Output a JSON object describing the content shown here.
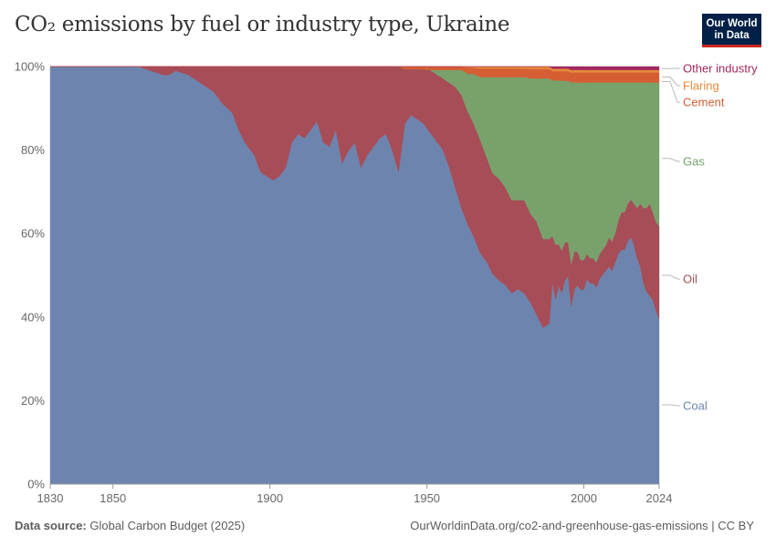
{
  "header": {
    "title": "CO₂ emissions by fuel or industry type, Ukraine",
    "logo_line1": "Our World",
    "logo_line2": "in Data"
  },
  "footer": {
    "source_label": "Data source:",
    "source_text": "Global Carbon Budget (2025)",
    "url_text": "OurWorldinData.org/co2-and-greenhouse-gas-emissions | CC BY"
  },
  "chart_data": {
    "type": "area",
    "stacked": true,
    "normalized": true,
    "xlim": [
      1830,
      2024
    ],
    "ylim": [
      0,
      100
    ],
    "x_ticks": [
      1830,
      1850,
      1900,
      1950,
      2000,
      2024
    ],
    "y_ticks": [
      "0%",
      "20%",
      "40%",
      "60%",
      "80%",
      "100%"
    ],
    "grid": true,
    "legend_placement": "right",
    "x": [
      1830,
      1850,
      1858,
      1862,
      1866,
      1868,
      1870,
      1874,
      1878,
      1882,
      1885,
      1888,
      1890,
      1892,
      1895,
      1897,
      1899,
      1901,
      1903,
      1905,
      1907,
      1909,
      1911,
      1913,
      1915,
      1917,
      1919,
      1921,
      1923,
      1925,
      1927,
      1929,
      1931,
      1933,
      1935,
      1937,
      1939,
      1941,
      1943,
      1945,
      1947,
      1949,
      1951,
      1953,
      1955,
      1957,
      1959,
      1961,
      1963,
      1965,
      1967,
      1969,
      1971,
      1973,
      1975,
      1977,
      1979,
      1981,
      1983,
      1985,
      1987,
      1989,
      1990,
      1991,
      1992,
      1993,
      1994,
      1995,
      1996,
      1997,
      1998,
      1999,
      2000,
      2001,
      2002,
      2003,
      2004,
      2005,
      2006,
      2007,
      2008,
      2009,
      2010,
      2011,
      2012,
      2013,
      2014,
      2015,
      2016,
      2017,
      2018,
      2019,
      2020,
      2021,
      2022,
      2023,
      2024
    ],
    "series": [
      {
        "name": "Coal",
        "color": "#6d84ae",
        "values": [
          100,
          100,
          100,
          99,
          98,
          98,
          99,
          98,
          96,
          94,
          91,
          88,
          84,
          81,
          78,
          74,
          73,
          72,
          73,
          75,
          81,
          83,
          82,
          84,
          86,
          81,
          80,
          84,
          76,
          79,
          81,
          75,
          78,
          80,
          82,
          83,
          79,
          74,
          86,
          88,
          87,
          86,
          84,
          82,
          80,
          76,
          71,
          66,
          62,
          59,
          55,
          53,
          50,
          48,
          47,
          45,
          46,
          45,
          43,
          40,
          37,
          38,
          48,
          44,
          47,
          45,
          48,
          49,
          42,
          46,
          47,
          46,
          46,
          49,
          48,
          48,
          47,
          49,
          50,
          51,
          52,
          51,
          53,
          55,
          56,
          56,
          58,
          59,
          57,
          54,
          52,
          48,
          46,
          45,
          44,
          41,
          39
        ]
      },
      {
        "name": "Oil",
        "color": "#a64d57",
        "values": [
          0,
          0,
          0,
          1,
          2,
          2,
          1,
          2,
          4,
          6,
          9,
          11,
          15,
          18,
          21,
          25,
          26,
          27,
          26,
          24,
          18,
          16,
          17,
          15,
          13,
          18,
          19,
          15,
          23,
          20,
          18,
          24,
          21,
          19,
          17,
          16,
          20,
          25,
          13,
          11,
          12,
          13,
          15,
          16,
          17,
          20,
          24,
          27,
          27,
          27,
          27,
          25,
          24,
          24,
          23,
          22,
          21,
          22,
          21,
          22,
          21,
          20,
          11,
          13,
          10,
          10,
          9,
          8,
          10,
          9,
          8,
          7,
          7,
          6,
          6,
          6,
          6,
          6,
          6,
          6,
          7,
          7,
          7,
          8,
          9,
          9,
          9,
          9,
          10,
          12,
          15,
          18,
          20,
          22,
          21,
          21,
          22
        ]
      },
      {
        "name": "Gas",
        "color": "#78a16c",
        "values": [
          0,
          0,
          0,
          0,
          0,
          0,
          0,
          0,
          0,
          0,
          0,
          0,
          0,
          0,
          0,
          0,
          0,
          0,
          0,
          0,
          0,
          0,
          0,
          0,
          0,
          0,
          0,
          0,
          0,
          0,
          0,
          0,
          0,
          0,
          0,
          0,
          0,
          0,
          0,
          0,
          0,
          0,
          0,
          1,
          2,
          3,
          4,
          6,
          9,
          12,
          15,
          19,
          23,
          24,
          26,
          29,
          29,
          29,
          32,
          34,
          38,
          38,
          37,
          39,
          39,
          40,
          38,
          38,
          43,
          40,
          40,
          42,
          42,
          41,
          42,
          42,
          43,
          41,
          40,
          39,
          37,
          38,
          36,
          33,
          31,
          31,
          29,
          28,
          29,
          30,
          29,
          30,
          30,
          29,
          31,
          33,
          34
        ]
      },
      {
        "name": "Cement",
        "color": "#d55e33",
        "values": [
          0,
          0,
          0,
          0,
          0,
          0,
          0,
          0,
          0,
          0,
          0,
          0,
          0,
          0,
          0,
          0,
          0,
          0,
          0,
          0,
          0,
          0,
          0,
          0,
          0,
          0,
          0,
          0,
          0,
          0,
          0,
          0,
          0,
          0,
          0,
          0,
          0,
          0,
          0.6,
          0.6,
          0.6,
          0.7,
          0.8,
          0.8,
          0.8,
          0.8,
          0.8,
          0.8,
          1.5,
          1.5,
          2,
          2,
          2,
          2,
          2,
          2,
          2,
          2,
          2.2,
          2.2,
          2.2,
          2.2,
          2.2,
          2.2,
          2.2,
          2.2,
          2.3,
          2.3,
          2.3,
          2.3,
          2.4,
          2.4,
          2.4,
          2.4,
          2.4,
          2.4,
          2.4,
          2.4,
          2.4,
          2.4,
          2.4,
          2.4,
          2.4,
          2.4,
          2.4,
          2.4,
          2.4,
          2.4,
          2.4,
          2.4,
          2.4,
          2.4,
          2.4,
          2.4,
          2.4,
          2.4,
          2.4
        ]
      },
      {
        "name": "Flaring",
        "color": "#e6883a",
        "values": [
          0,
          0,
          0,
          0,
          0,
          0,
          0,
          0,
          0,
          0,
          0,
          0,
          0,
          0,
          0,
          0,
          0,
          0,
          0,
          0,
          0,
          0,
          0,
          0,
          0,
          0,
          0,
          0,
          0,
          0,
          0,
          0,
          0,
          0,
          0,
          0,
          0,
          0,
          0,
          0,
          0,
          0,
          0,
          0,
          0,
          0,
          0,
          0,
          0.2,
          0.3,
          0.5,
          0.5,
          0.5,
          0.5,
          0.5,
          0.5,
          0.5,
          0.5,
          0.6,
          0.6,
          0.6,
          0.6,
          0.6,
          0.6,
          0.6,
          0.6,
          0.6,
          0.6,
          0.6,
          0.6,
          0.6,
          0.6,
          0.6,
          0.6,
          0.6,
          0.6,
          0.6,
          0.6,
          0.6,
          0.6,
          0.6,
          0.6,
          0.6,
          0.6,
          0.6,
          0.6,
          0.6,
          0.6,
          0.6,
          0.6,
          0.6,
          0.6,
          0.6,
          0.6,
          0.6,
          0.6,
          0.6
        ]
      },
      {
        "name": "Other industry",
        "color": "#a2285e",
        "values": [
          0,
          0,
          0,
          0,
          0,
          0,
          0,
          0,
          0,
          0,
          0,
          0,
          0,
          0,
          0,
          0,
          0,
          0,
          0,
          0,
          0,
          0,
          0,
          0,
          0,
          0,
          0,
          0,
          0,
          0,
          0,
          0,
          0,
          0,
          0,
          0,
          0,
          0,
          0,
          0,
          0,
          0,
          0,
          0,
          0,
          0,
          0,
          0,
          0,
          0,
          0,
          0,
          0,
          0,
          0,
          0,
          0,
          0,
          0,
          0,
          0,
          0,
          0.5,
          0.5,
          0.5,
          0.5,
          0.5,
          0.5,
          0.8,
          0.8,
          0.8,
          0.8,
          0.8,
          0.8,
          0.8,
          0.8,
          0.8,
          0.8,
          0.8,
          0.8,
          0.8,
          0.8,
          0.8,
          0.8,
          0.8,
          0.8,
          0.8,
          0.8,
          0.8,
          0.8,
          0.8,
          0.8,
          0.8,
          0.8,
          0.8,
          0.8,
          0.8
        ]
      }
    ],
    "legend": [
      {
        "label": "Other industry",
        "color": "#a2285e",
        "anchor": 99.5
      },
      {
        "label": "Flaring",
        "color": "#e6883a",
        "anchor": 97.5
      },
      {
        "label": "Cement",
        "color": "#d55e33",
        "anchor": 96.4
      },
      {
        "label": "Gas",
        "color": "#78a16c",
        "anchor": 78
      },
      {
        "label": "Oil",
        "color": "#a64d57",
        "anchor": 50
      },
      {
        "label": "Coal",
        "color": "#6d84ae",
        "anchor": 19
      }
    ]
  }
}
